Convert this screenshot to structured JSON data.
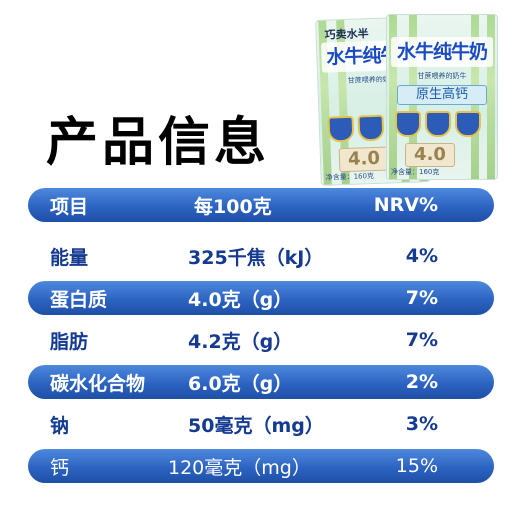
{
  "title": "产品信息",
  "package": {
    "brand": "巧卖水半",
    "name": "水牛纯牛奶",
    "subtitle": "甘蔗喂养的奶牛",
    "calcium": "原生高钙",
    "protein_badge": "4.0",
    "net_content": "净含量：160克"
  },
  "table": {
    "header": {
      "item": "项目",
      "per": "每100克",
      "nrv": "NRV%"
    },
    "rows": [
      {
        "item": "能量",
        "value": "325千焦（kJ）",
        "nrv": "4%"
      },
      {
        "item": "蛋白质",
        "value": "4.0克（g）",
        "nrv": "7%"
      },
      {
        "item": "脂肪",
        "value": "4.2克（g）",
        "nrv": "7%"
      },
      {
        "item": "碳水化合物",
        "value": "6.0克（g）",
        "nrv": "2%"
      },
      {
        "item": "钠",
        "value": "50毫克（mg）",
        "nrv": "3%"
      },
      {
        "item": "钙",
        "value": "120毫克（mg）",
        "nrv": "15%"
      }
    ]
  },
  "colors": {
    "band": "#2c63c2",
    "text_blue": "#143a91"
  }
}
